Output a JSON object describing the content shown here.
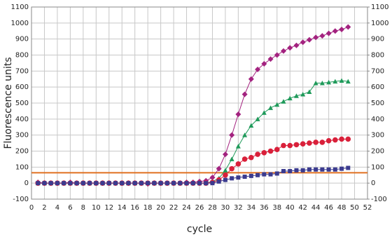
{
  "chart_data": {
    "type": "line",
    "xlabel": "cycle",
    "ylabel": "Fluorescence units",
    "x": [
      1,
      2,
      3,
      4,
      5,
      6,
      7,
      8,
      9,
      10,
      11,
      12,
      13,
      14,
      15,
      16,
      17,
      18,
      19,
      20,
      21,
      22,
      23,
      24,
      25,
      26,
      27,
      28,
      29,
      30,
      31,
      32,
      33,
      34,
      35,
      36,
      37,
      38,
      39,
      40,
      41,
      42,
      43,
      44,
      45,
      46,
      47,
      48,
      49
    ],
    "series": [
      {
        "color": "#a3227f",
        "marker": "diamond",
        "values": [
          5,
          0,
          0,
          0,
          0,
          5,
          0,
          0,
          0,
          0,
          0,
          0,
          0,
          0,
          0,
          0,
          0,
          -5,
          0,
          0,
          0,
          0,
          0,
          5,
          5,
          10,
          15,
          35,
          90,
          180,
          300,
          430,
          555,
          650,
          710,
          745,
          775,
          800,
          825,
          845,
          860,
          880,
          895,
          910,
          920,
          935,
          950,
          960,
          975
        ]
      },
      {
        "color": "#1f9a5a",
        "marker": "triangle",
        "values": [
          0,
          0,
          0,
          0,
          0,
          0,
          0,
          0,
          0,
          0,
          0,
          0,
          0,
          0,
          0,
          0,
          0,
          0,
          0,
          0,
          0,
          0,
          0,
          0,
          0,
          0,
          0,
          10,
          30,
          80,
          150,
          230,
          300,
          360,
          400,
          440,
          470,
          490,
          510,
          530,
          545,
          555,
          570,
          625,
          625,
          630,
          635,
          640,
          635
        ]
      },
      {
        "color": "#d9203a",
        "marker": "circle",
        "values": [
          0,
          0,
          0,
          0,
          0,
          0,
          0,
          0,
          0,
          0,
          0,
          0,
          0,
          0,
          0,
          0,
          0,
          0,
          0,
          0,
          0,
          0,
          0,
          0,
          0,
          0,
          0,
          5,
          20,
          50,
          90,
          120,
          150,
          160,
          180,
          190,
          200,
          210,
          235,
          235,
          240,
          245,
          250,
          255,
          255,
          265,
          270,
          275,
          275
        ]
      },
      {
        "color": "#3b3b8f",
        "marker": "square",
        "values": [
          0,
          0,
          0,
          0,
          0,
          0,
          0,
          0,
          0,
          0,
          0,
          0,
          0,
          0,
          0,
          0,
          0,
          0,
          0,
          0,
          0,
          0,
          0,
          0,
          0,
          0,
          0,
          0,
          10,
          20,
          30,
          35,
          40,
          45,
          50,
          55,
          55,
          60,
          75,
          75,
          80,
          80,
          85,
          85,
          85,
          85,
          85,
          90,
          95
        ]
      }
    ],
    "threshold": 65,
    "threshold_color": "#e07020",
    "xlim": [
      0,
      52
    ],
    "xticks": [
      0,
      2,
      4,
      6,
      8,
      10,
      12,
      14,
      16,
      18,
      20,
      22,
      24,
      26,
      28,
      30,
      32,
      34,
      36,
      38,
      40,
      42,
      44,
      46,
      48,
      50,
      52
    ],
    "ylim": [
      -100,
      1100
    ],
    "yticks": [
      -100,
      0,
      100,
      200,
      300,
      400,
      500,
      600,
      700,
      800,
      900,
      1000,
      1100
    ],
    "y2lim": [
      -100,
      1100
    ],
    "y2ticks": [
      -100,
      0,
      100,
      200,
      300,
      400,
      500,
      600,
      700,
      800,
      900,
      1000,
      1100
    ],
    "grid": true
  }
}
